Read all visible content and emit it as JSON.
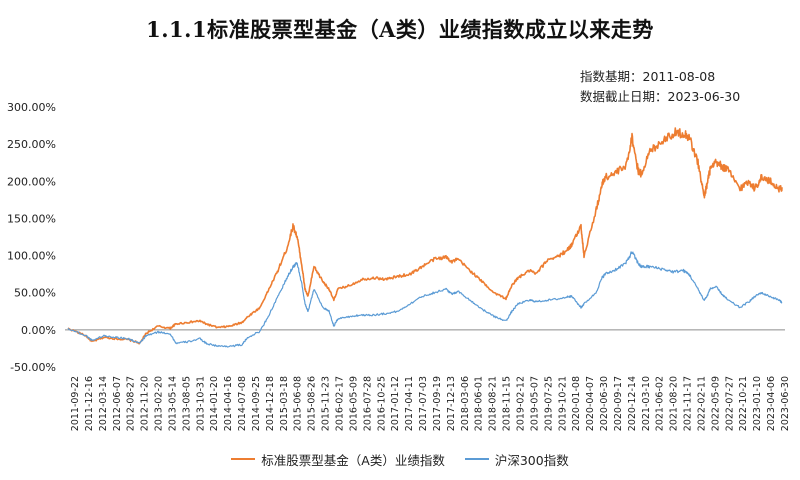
{
  "title": "1.1.1标准股票型基金（A类）业绩指数成立以来走势",
  "notes": {
    "base_date": "指数基期：2011-08-08",
    "end_date": "数据截止日期：2023-06-30"
  },
  "chart_data": {
    "type": "line",
    "title": "1.1.1标准股票型基金（A类）业绩指数成立以来走势",
    "ylabel": "",
    "xlabel": "",
    "ylim": [
      -50,
      300
    ],
    "yticks": [
      "300.00%",
      "250.00%",
      "200.00%",
      "150.00%",
      "100.00%",
      "50.00%",
      "0.00%",
      "-50.00%"
    ],
    "ytick_values": [
      300,
      250,
      200,
      150,
      100,
      50,
      0,
      -50
    ],
    "xticks": [
      "2011-09-22",
      "2011-12-16",
      "2012-03-14",
      "2012-06-07",
      "2012-08-27",
      "2012-11-20",
      "2013-02-20",
      "2013-05-14",
      "2013-08-05",
      "2013-10-31",
      "2014-01-20",
      "2014-04-16",
      "2014-07-08",
      "2014-09-25",
      "2014-12-18",
      "2015-03-18",
      "2015-06-08",
      "2015-08-26",
      "2015-11-23",
      "2016-02-17",
      "2016-05-09",
      "2016-07-28",
      "2016-10-25",
      "2017-01-12",
      "2017-04-11",
      "2017-07-03",
      "2017-09-19",
      "2017-12-13",
      "2018-03-06",
      "2018-06-01",
      "2018-08-21",
      "2018-11-15",
      "2019-02-12",
      "2019-05-07",
      "2019-07-25",
      "2019-10-21",
      "2020-01-08",
      "2020-04-07",
      "2020-06-30",
      "2020-09-17",
      "2020-12-14",
      "2021-03-10",
      "2021-06-02",
      "2021-08-20",
      "2021-11-17",
      "2022-02-11",
      "2022-05-09",
      "2022-07-27",
      "2022-10-21",
      "2023-01-10",
      "2023-04-06",
      "2023-06-30"
    ],
    "grid": false,
    "legend_position": "bottom",
    "series": [
      {
        "name": "标准股票型基金（A类）业绩指数",
        "color": "#ED7D31",
        "x": [
          2011.6,
          2011.9,
          2012.0,
          2012.2,
          2012.4,
          2012.6,
          2012.8,
          2012.9,
          2013.1,
          2013.3,
          2013.4,
          2013.6,
          2013.8,
          2013.9,
          2014.1,
          2014.3,
          2014.5,
          2014.6,
          2014.8,
          2014.95,
          2015.1,
          2015.25,
          2015.35,
          2015.42,
          2015.5,
          2015.55,
          2015.6,
          2015.7,
          2015.85,
          2015.95,
          2016.03,
          2016.1,
          2016.3,
          2016.5,
          2016.7,
          2016.9,
          2017.1,
          2017.3,
          2017.5,
          2017.7,
          2017.9,
          2018.0,
          2018.1,
          2018.3,
          2018.5,
          2018.7,
          2018.9,
          2019.0,
          2019.1,
          2019.3,
          2019.4,
          2019.6,
          2019.8,
          2019.95,
          2020.0,
          2020.15,
          2020.2,
          2020.4,
          2020.5,
          2020.55,
          2020.7,
          2020.9,
          2021.0,
          2021.1,
          2021.15,
          2021.3,
          2021.5,
          2021.7,
          2021.85,
          2021.95,
          2022.1,
          2022.2,
          2022.25,
          2022.3,
          2022.4,
          2022.5,
          2022.6,
          2022.8,
          2022.95,
          2023.05,
          2023.15,
          2023.3,
          2023.45,
          2023.5
        ],
        "y": [
          2,
          -8,
          -16,
          -10,
          -12,
          -13,
          -18,
          -5,
          5,
          2,
          8,
          10,
          12,
          8,
          3,
          5,
          10,
          18,
          30,
          55,
          80,
          110,
          140,
          125,
          85,
          55,
          45,
          85,
          65,
          55,
          40,
          55,
          60,
          68,
          70,
          68,
          72,
          75,
          85,
          95,
          98,
          92,
          95,
          80,
          65,
          50,
          42,
          60,
          70,
          80,
          75,
          95,
          100,
          110,
          115,
          140,
          100,
          160,
          195,
          205,
          210,
          220,
          260,
          215,
          210,
          240,
          255,
          265,
          265,
          260,
          225,
          180,
          195,
          215,
          225,
          220,
          215,
          190,
          200,
          190,
          205,
          200,
          190,
          192
        ]
      },
      {
        "name": "沪深300指数",
        "color": "#5B9BD5",
        "x": [
          2011.6,
          2011.9,
          2012.0,
          2012.2,
          2012.4,
          2012.6,
          2012.8,
          2012.9,
          2013.1,
          2013.3,
          2013.4,
          2013.6,
          2013.8,
          2013.9,
          2014.1,
          2014.3,
          2014.5,
          2014.6,
          2014.8,
          2014.95,
          2015.1,
          2015.25,
          2015.35,
          2015.42,
          2015.5,
          2015.55,
          2015.6,
          2015.7,
          2015.85,
          2015.95,
          2016.03,
          2016.1,
          2016.3,
          2016.5,
          2016.7,
          2016.9,
          2017.1,
          2017.3,
          2017.5,
          2017.7,
          2017.9,
          2018.0,
          2018.1,
          2018.3,
          2018.5,
          2018.7,
          2018.9,
          2019.0,
          2019.1,
          2019.3,
          2019.4,
          2019.6,
          2019.8,
          2019.95,
          2020.0,
          2020.15,
          2020.2,
          2020.4,
          2020.5,
          2020.55,
          2020.7,
          2020.9,
          2021.0,
          2021.1,
          2021.15,
          2021.3,
          2021.5,
          2021.7,
          2021.85,
          2021.95,
          2022.1,
          2022.2,
          2022.25,
          2022.3,
          2022.4,
          2022.5,
          2022.6,
          2022.8,
          2022.95,
          2023.05,
          2023.15,
          2023.3,
          2023.45,
          2023.5
        ],
        "y": [
          2,
          -8,
          -14,
          -8,
          -10,
          -12,
          -18,
          -8,
          -3,
          -5,
          -18,
          -16,
          -12,
          -18,
          -22,
          -22,
          -20,
          -10,
          -2,
          20,
          45,
          70,
          85,
          90,
          60,
          35,
          25,
          55,
          30,
          25,
          5,
          15,
          18,
          20,
          20,
          22,
          25,
          35,
          45,
          50,
          55,
          48,
          52,
          40,
          28,
          18,
          12,
          25,
          35,
          40,
          38,
          40,
          42,
          45,
          45,
          30,
          35,
          50,
          70,
          75,
          80,
          90,
          105,
          90,
          85,
          85,
          82,
          78,
          80,
          75,
          55,
          40,
          45,
          55,
          58,
          48,
          40,
          30,
          38,
          45,
          50,
          45,
          40,
          37
        ]
      }
    ]
  }
}
